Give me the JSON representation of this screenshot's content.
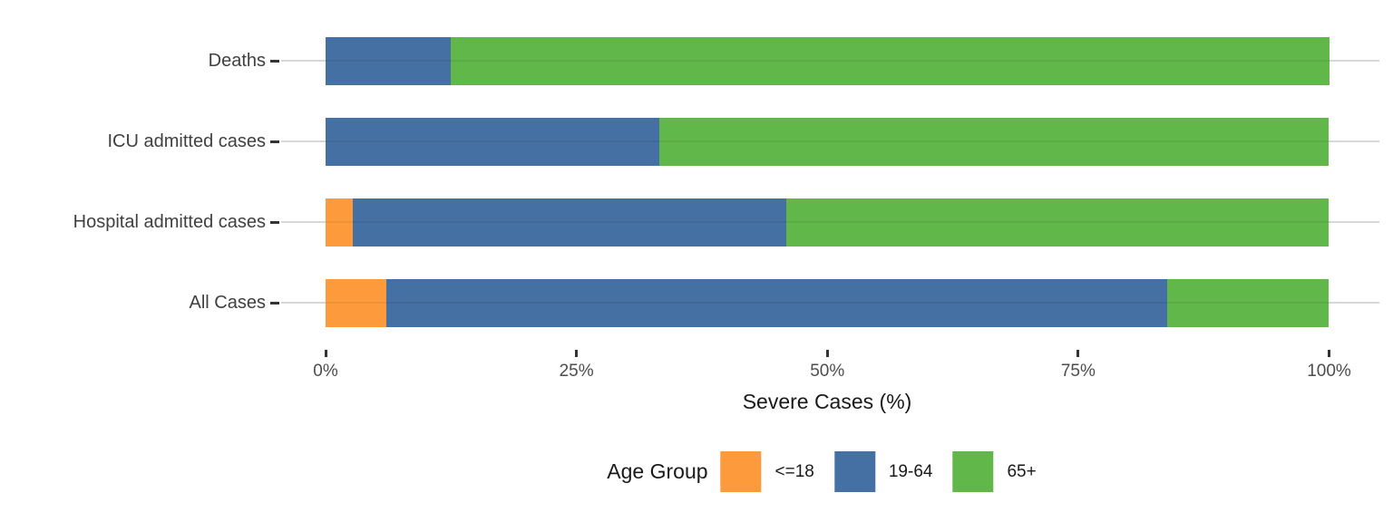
{
  "chart_data": {
    "type": "bar",
    "orientation": "horizontal",
    "stacked": true,
    "title": "",
    "xlabel": "Severe Cases (%)",
    "ylabel": "",
    "categories": [
      "Deaths",
      "ICU admitted cases",
      "Hospital admitted cases",
      "All Cases"
    ],
    "series": [
      {
        "name": "<=18",
        "color": "#FD9A3B",
        "values": [
          0,
          0,
          2.7,
          6.1
        ]
      },
      {
        "name": "19-64",
        "color": "#4470A4",
        "values": [
          12.5,
          33.3,
          43.2,
          77.8
        ]
      },
      {
        "name": "65+",
        "color": "#62B74B",
        "values": [
          87.5,
          66.7,
          54.1,
          16.1
        ]
      }
    ],
    "xlim": [
      0,
      100
    ],
    "x_tick_values": [
      0,
      25,
      50,
      75,
      100
    ],
    "x_ticks": [
      "0%",
      "25%",
      "50%",
      "75%",
      "100%"
    ],
    "legend_title": "Age Group",
    "legend_position": "bottom",
    "grid": "horizontal-major-only",
    "grid_color": "#d7d7d7",
    "tick_color": "#333333",
    "tick_label_color": "#4d4d4d",
    "category_label_color": "#404040"
  }
}
